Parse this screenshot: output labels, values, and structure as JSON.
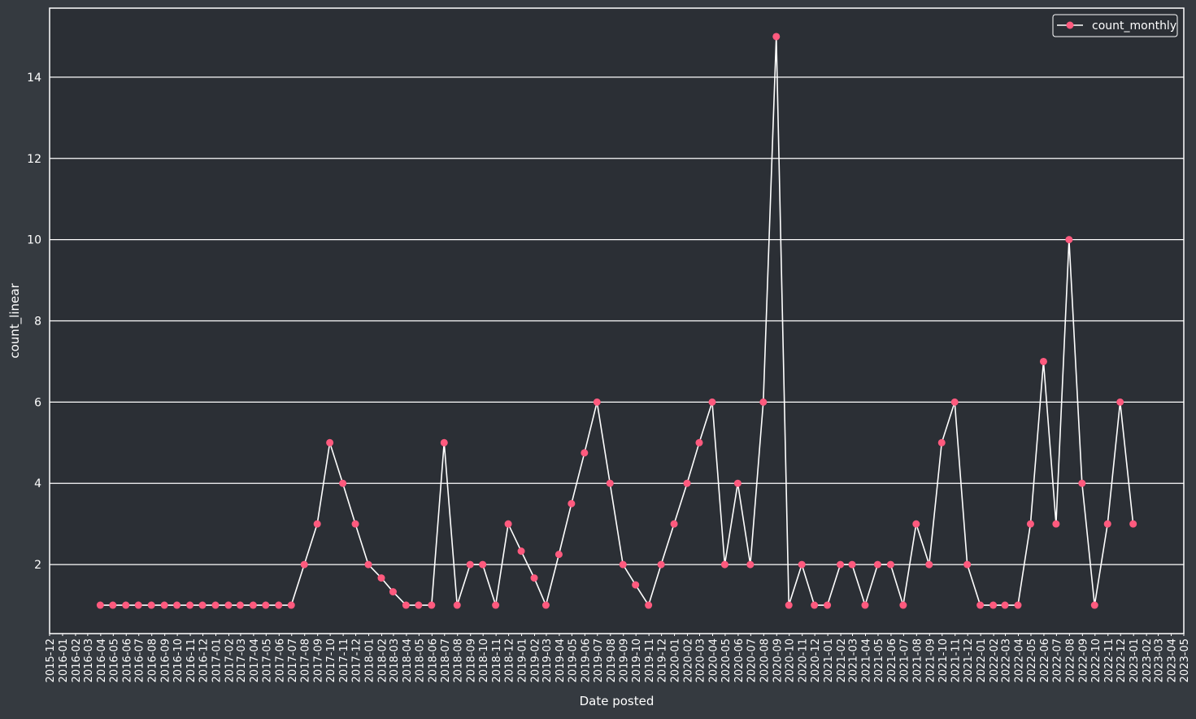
{
  "colors": {
    "figure_background": "#353a40",
    "plot_background": "#2b2f35",
    "frame": "#ffffff",
    "grid": "#ffffff",
    "line": "#ffffff",
    "marker": "#ff5a7e",
    "text": "#ffffff"
  },
  "chart_data": {
    "type": "line",
    "title": "",
    "xlabel": "Date posted",
    "ylabel": "count_linear",
    "ylim": [
      0.3,
      15.7
    ],
    "yticks": [
      2,
      4,
      6,
      8,
      10,
      12,
      14
    ],
    "grid": "horizontal",
    "legend_position": "top-right",
    "x_tick_labels": [
      "2015-12",
      "2016-01",
      "2016-02",
      "2016-03",
      "2016-04",
      "2016-05",
      "2016-06",
      "2016-07",
      "2016-08",
      "2016-09",
      "2016-10",
      "2016-11",
      "2016-12",
      "2017-01",
      "2017-02",
      "2017-03",
      "2017-04",
      "2017-05",
      "2017-06",
      "2017-07",
      "2017-08",
      "2017-09",
      "2017-10",
      "2017-11",
      "2017-12",
      "2018-01",
      "2018-02",
      "2018-03",
      "2018-04",
      "2018-05",
      "2018-06",
      "2018-07",
      "2018-08",
      "2018-09",
      "2018-10",
      "2018-11",
      "2018-12",
      "2019-01",
      "2019-02",
      "2019-03",
      "2019-04",
      "2019-05",
      "2019-06",
      "2019-07",
      "2019-08",
      "2019-09",
      "2019-10",
      "2019-11",
      "2019-12",
      "2020-01",
      "2020-02",
      "2020-03",
      "2020-04",
      "2020-05",
      "2020-06",
      "2020-07",
      "2020-08",
      "2020-09",
      "2020-10",
      "2020-11",
      "2020-12",
      "2021-01",
      "2021-02",
      "2021-03",
      "2021-04",
      "2021-05",
      "2021-06",
      "2021-07",
      "2021-08",
      "2021-09",
      "2021-10",
      "2021-11",
      "2021-12",
      "2022-01",
      "2022-02",
      "2022-03",
      "2022-04",
      "2022-05",
      "2022-06",
      "2022-07",
      "2022-08",
      "2022-09",
      "2022-10",
      "2022-11",
      "2022-12",
      "2023-01",
      "2023-02",
      "2023-03",
      "2023-04",
      "2023-05"
    ],
    "series": [
      {
        "name": "count_monthly",
        "x": [
          "2016-03-31",
          "2016-04-30",
          "2016-05-31",
          "2016-06-30",
          "2016-07-31",
          "2016-08-31",
          "2016-09-30",
          "2016-10-31",
          "2016-11-30",
          "2016-12-31",
          "2017-01-31",
          "2017-02-28",
          "2017-03-31",
          "2017-04-30",
          "2017-05-31",
          "2017-06-30",
          "2017-07-31",
          "2017-08-31",
          "2017-09-30",
          "2017-10-31",
          "2017-11-30",
          "2017-12-31",
          "2018-01-31",
          "2018-02-28",
          "2018-03-31",
          "2018-04-30",
          "2018-05-31",
          "2018-06-30",
          "2018-07-31",
          "2018-08-31",
          "2018-09-30",
          "2018-10-31",
          "2018-11-30",
          "2018-12-31",
          "2019-01-31",
          "2019-02-28",
          "2019-03-31",
          "2019-04-30",
          "2019-05-31",
          "2019-06-30",
          "2019-07-31",
          "2019-08-31",
          "2019-09-30",
          "2019-10-31",
          "2019-11-30",
          "2019-12-31",
          "2020-01-31",
          "2020-02-29",
          "2020-03-31",
          "2020-04-30",
          "2020-05-31",
          "2020-06-30",
          "2020-07-31",
          "2020-08-31",
          "2020-09-30",
          "2020-10-31",
          "2020-11-30",
          "2020-12-31",
          "2021-01-31",
          "2021-02-28",
          "2021-03-31",
          "2021-04-30",
          "2021-05-31",
          "2021-06-30",
          "2021-07-31",
          "2021-08-31",
          "2021-09-30",
          "2021-10-31",
          "2021-11-30",
          "2021-12-31",
          "2022-01-31",
          "2022-02-28",
          "2022-03-31",
          "2022-04-30",
          "2022-05-31",
          "2022-06-30",
          "2022-07-31",
          "2022-08-31",
          "2022-09-30",
          "2022-10-31",
          "2022-11-30",
          "2022-12-31"
        ],
        "values": [
          1,
          1,
          1,
          1,
          1,
          1,
          1,
          1,
          1,
          1,
          1,
          1,
          1,
          1,
          1,
          1,
          2,
          3,
          5,
          4,
          3,
          2,
          1.67,
          1.33,
          1,
          1,
          1,
          5,
          1,
          2,
          2,
          1,
          3,
          2.33,
          1.67,
          1,
          2.25,
          3.5,
          4.75,
          6,
          4,
          2,
          1.5,
          1,
          2,
          3,
          4,
          5,
          6,
          2,
          4,
          2,
          6,
          15,
          1,
          2,
          1,
          1,
          2,
          2,
          1,
          2,
          2,
          1,
          3,
          2,
          5,
          6,
          2,
          1,
          1,
          1,
          1,
          3,
          7,
          3,
          10,
          4,
          1,
          3,
          6,
          3
        ]
      }
    ]
  }
}
